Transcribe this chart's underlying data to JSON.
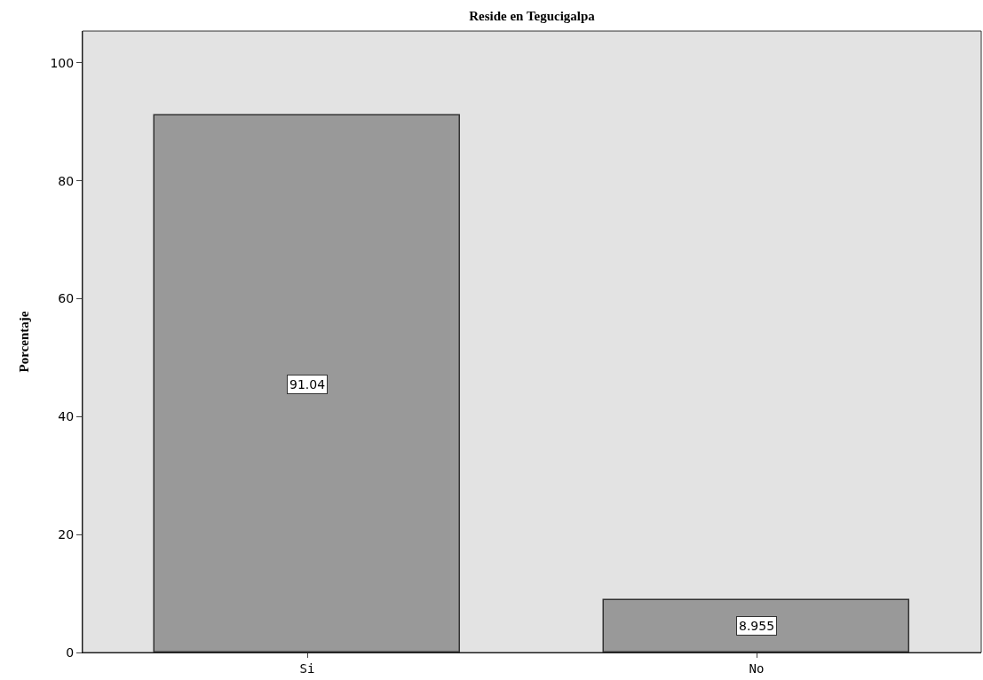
{
  "chart_data": {
    "type": "bar",
    "title": "Reside en Tegucigalpa",
    "ylabel": "Porcentaje",
    "categories": [
      "Si",
      "No"
    ],
    "values": [
      91.04,
      8.955
    ],
    "color": "#999999",
    "ylim": [
      0,
      105.4
    ],
    "yticks": [
      0,
      20,
      40,
      60,
      80,
      100
    ],
    "grid": false,
    "data_labels": true
  }
}
